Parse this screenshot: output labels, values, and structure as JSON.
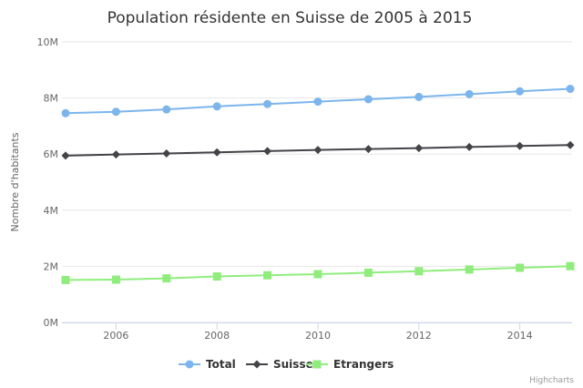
{
  "chart_data": {
    "type": "line",
    "title": "Population résidente en Suisse de 2005 à 2015",
    "xlabel": "",
    "ylabel": "Nombre d'habitants",
    "x": [
      2005,
      2006,
      2007,
      2008,
      2009,
      2010,
      2011,
      2012,
      2013,
      2014,
      2015
    ],
    "xticks": [
      "2006",
      "2008",
      "2010",
      "2012",
      "2014"
    ],
    "xlim": [
      2005,
      2015
    ],
    "ylim": [
      0,
      10000000
    ],
    "yticks": [
      "0M",
      "2M",
      "4M",
      "6M",
      "8M",
      "10M"
    ],
    "grid": true,
    "legend": "bottom",
    "series": [
      {
        "name": "Total",
        "color": "#7cb5ec",
        "marker": "circle",
        "values": [
          7459000,
          7509000,
          7593000,
          7702000,
          7786000,
          7870000,
          7955000,
          8039000,
          8139000,
          8237000,
          8327000
        ]
      },
      {
        "name": "Suisses",
        "color": "#434348",
        "marker": "diamond",
        "values": [
          5947000,
          5985000,
          6022000,
          6064000,
          6106000,
          6150000,
          6183000,
          6214000,
          6253000,
          6290000,
          6322000
        ]
      },
      {
        "name": "Etrangers",
        "color": "#90ed7d",
        "marker": "square",
        "values": [
          1512000,
          1524000,
          1571000,
          1638000,
          1680000,
          1720000,
          1772000,
          1825000,
          1886000,
          1947000,
          2005000
        ]
      }
    ],
    "credit": "Highcharts"
  }
}
